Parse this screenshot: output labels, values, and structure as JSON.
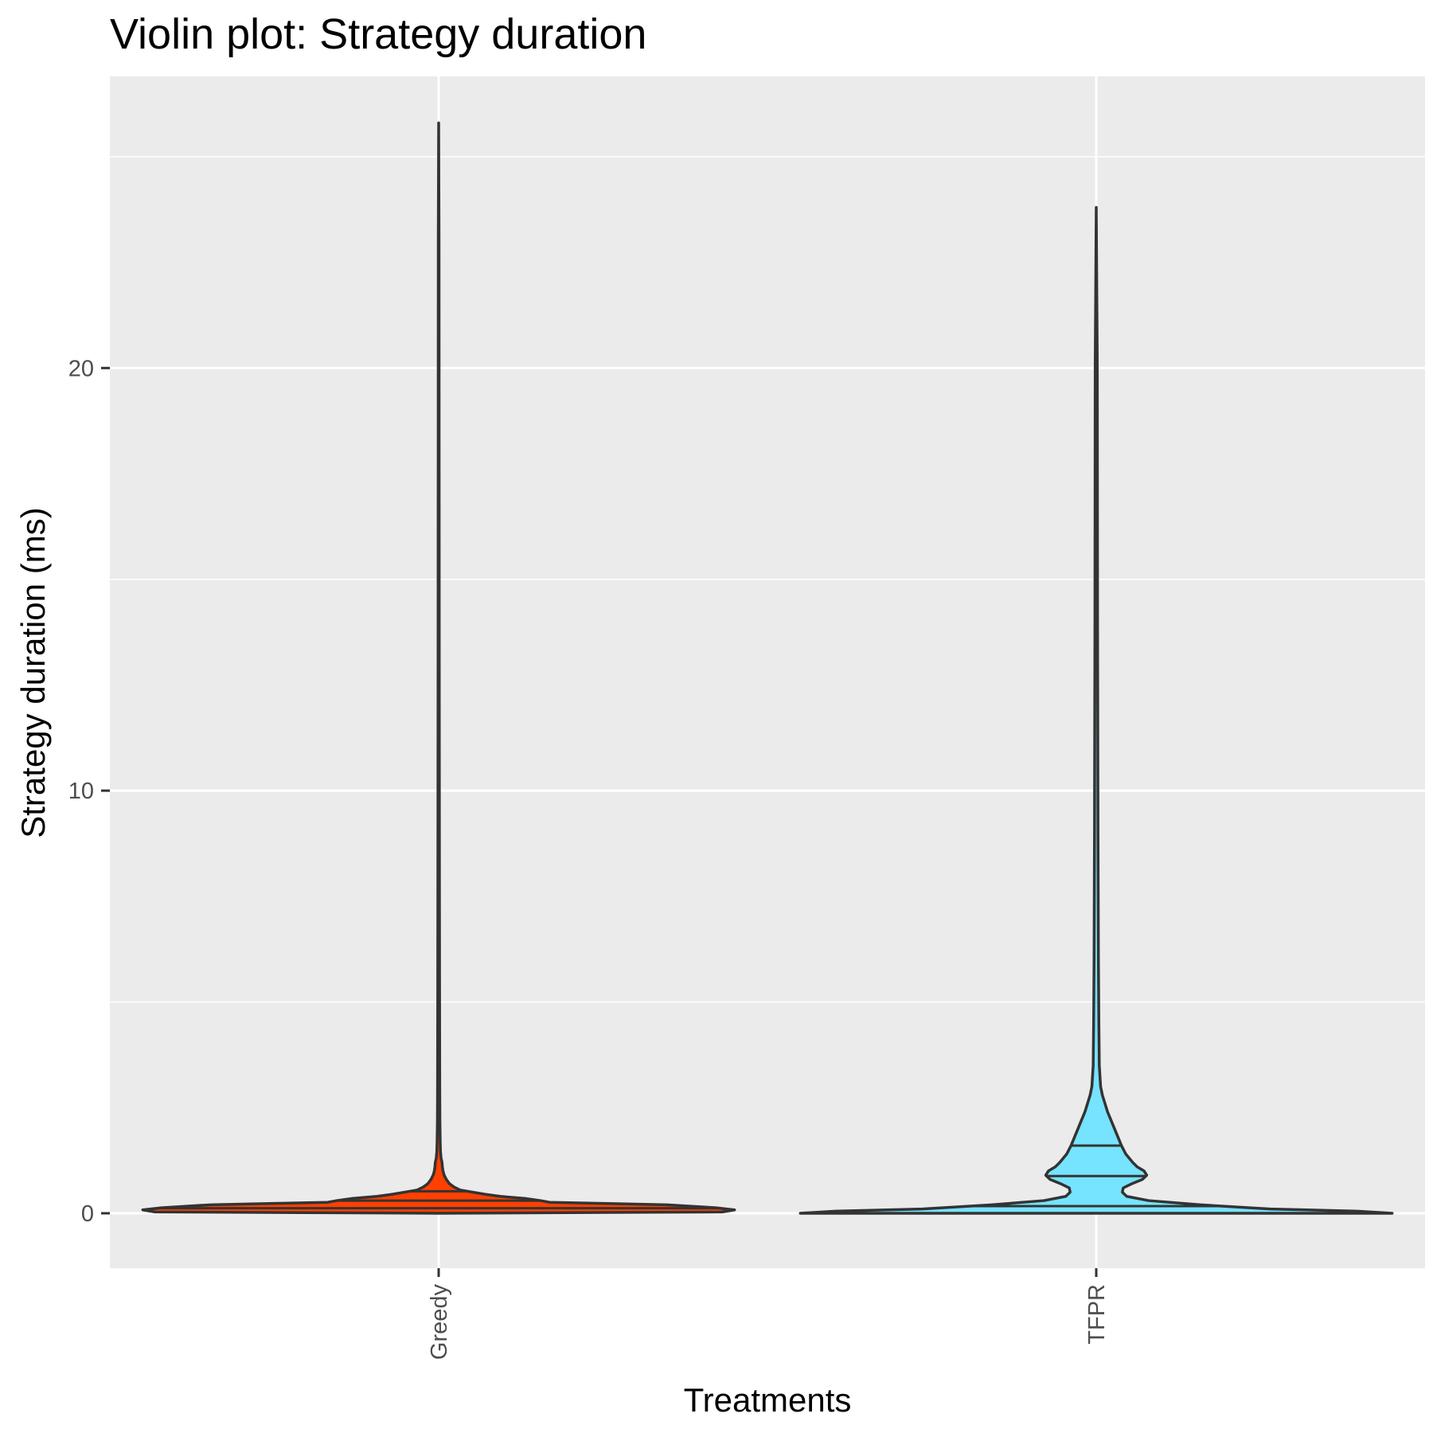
{
  "chart_data": {
    "type": "violin",
    "title": "Violin plot: Strategy duration",
    "xlabel": "Treatments",
    "ylabel": "Strategy duration (ms)",
    "categories": [
      "Greedy",
      "TFPR"
    ],
    "ylim": [
      -1.3,
      26.9
    ],
    "yticks": [
      0,
      10,
      20
    ],
    "yticks_minor": [
      5,
      15,
      25
    ],
    "grid": true,
    "legend": "none",
    "colors": {
      "panel": "#EBEBEB",
      "grid": "#FFFFFF",
      "outline": "#333333",
      "tick": "#333333"
    },
    "series": [
      {
        "category": "Greedy",
        "fill": "#FF4000",
        "min": 0,
        "max": 25.8,
        "quantiles": [
          0.12,
          0.3,
          0.52
        ],
        "density": [
          [
            0,
            0.0
          ],
          [
            0.03,
            0.92
          ],
          [
            0.08,
            0.96
          ],
          [
            0.13,
            0.9
          ],
          [
            0.2,
            0.74
          ],
          [
            0.23,
            0.55
          ],
          [
            0.26,
            0.36
          ],
          [
            0.3,
            0.33
          ],
          [
            0.35,
            0.28
          ],
          [
            0.4,
            0.2
          ],
          [
            0.45,
            0.15
          ],
          [
            0.5,
            0.11
          ],
          [
            0.55,
            0.07
          ],
          [
            0.62,
            0.05
          ],
          [
            0.7,
            0.035
          ],
          [
            0.8,
            0.025
          ],
          [
            0.9,
            0.018
          ],
          [
            1.0,
            0.014
          ],
          [
            1.1,
            0.012
          ],
          [
            1.2,
            0.011
          ],
          [
            1.3,
            0.008
          ],
          [
            1.45,
            0.006
          ],
          [
            1.7,
            0.005
          ],
          [
            2.2,
            0.004
          ],
          [
            3,
            0.0035
          ],
          [
            5,
            0.003
          ],
          [
            8,
            0.0025
          ],
          [
            12,
            0.002
          ],
          [
            18,
            0.0015
          ],
          [
            23,
            0.0012
          ],
          [
            25.8,
            0.0
          ]
        ]
      },
      {
        "category": "TFPR",
        "fill": "#76E3FF",
        "min": 0,
        "max": 23.8,
        "quantiles": [
          0.17,
          0.88,
          1.6
        ],
        "density": [
          [
            0,
            0.34
          ],
          [
            0.05,
            0.3
          ],
          [
            0.1,
            0.2
          ],
          [
            0.2,
            0.12
          ],
          [
            0.3,
            0.06
          ],
          [
            0.4,
            0.035
          ],
          [
            0.5,
            0.03
          ],
          [
            0.6,
            0.031
          ],
          [
            0.7,
            0.041
          ],
          [
            0.8,
            0.053
          ],
          [
            0.9,
            0.058
          ],
          [
            1.0,
            0.055
          ],
          [
            1.1,
            0.047
          ],
          [
            1.2,
            0.042
          ],
          [
            1.4,
            0.034
          ],
          [
            1.6,
            0.029
          ],
          [
            1.8,
            0.025
          ],
          [
            2.0,
            0.021
          ],
          [
            2.2,
            0.017
          ],
          [
            2.4,
            0.013
          ],
          [
            2.6,
            0.01
          ],
          [
            2.8,
            0.007
          ],
          [
            3.0,
            0.005
          ],
          [
            3.5,
            0.0035
          ],
          [
            4.5,
            0.003
          ],
          [
            6,
            0.0025
          ],
          [
            9,
            0.002
          ],
          [
            14,
            0.0015
          ],
          [
            20,
            0.0012
          ],
          [
            23.8,
            0.0
          ]
        ]
      }
    ]
  }
}
